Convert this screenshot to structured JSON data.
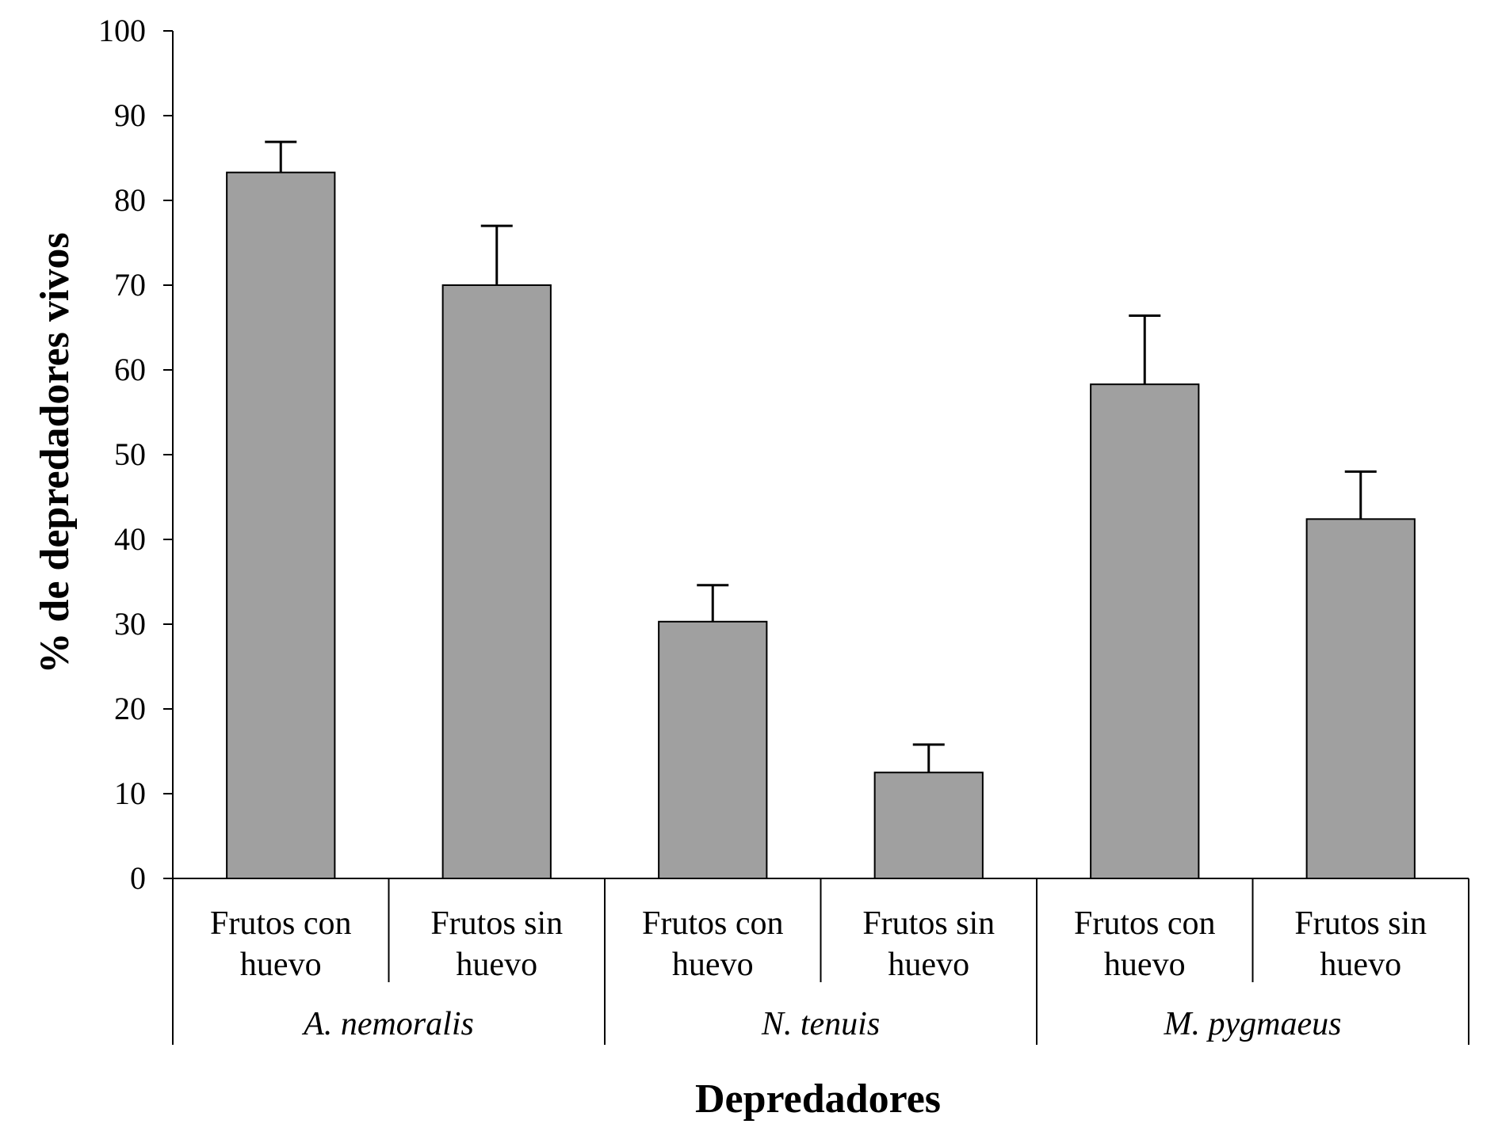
{
  "chart_data": {
    "type": "bar",
    "xlabel": "Depredadores",
    "ylabel": "%  de depredadores vivos",
    "ylim": [
      0,
      100
    ],
    "yticks": [
      0,
      10,
      20,
      30,
      40,
      50,
      60,
      70,
      80,
      90,
      100
    ],
    "groups": [
      {
        "name": "A. nemoralis",
        "categories": [
          "Frutos con huevo",
          "Frutos sin huevo"
        ]
      },
      {
        "name": "N. tenuis",
        "categories": [
          "Frutos con huevo",
          "Frutos sin huevo"
        ]
      },
      {
        "name": "M. pygmaeus",
        "categories": [
          "Frutos con huevo",
          "Frutos sin huevo"
        ]
      }
    ],
    "categories": [
      {
        "line1": "Frutos con",
        "line2": "huevo"
      },
      {
        "line1": "Frutos sin",
        "line2": "huevo"
      },
      {
        "line1": "Frutos con",
        "line2": "huevo"
      },
      {
        "line1": "Frutos sin",
        "line2": "huevo"
      },
      {
        "line1": "Frutos con",
        "line2": "huevo"
      },
      {
        "line1": "Frutos sin",
        "line2": "huevo"
      }
    ],
    "values": [
      83.3,
      70.0,
      30.3,
      12.5,
      58.3,
      42.4
    ],
    "errors": [
      3.6,
      7.0,
      4.3,
      3.3,
      8.1,
      5.6
    ],
    "bar_color": "#a0a0a0",
    "edge_color": "#000000",
    "grid": false
  }
}
